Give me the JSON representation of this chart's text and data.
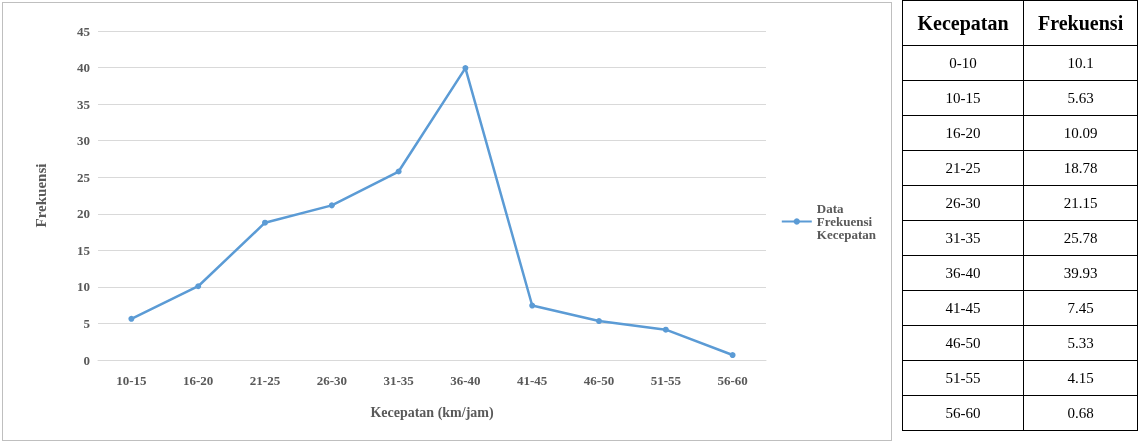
{
  "chart_data": [
    {
      "type": "line",
      "xlabel": "Kecepatan (km/jam)",
      "ylabel": "Frekuensi",
      "categories": [
        "10-15",
        "16-20",
        "21-25",
        "26-30",
        "31-35",
        "36-40",
        "41-45",
        "46-50",
        "51-55",
        "56-60"
      ],
      "series": [
        {
          "name": "Data Frekuensi Kecepatan",
          "color": "#5b9bd5",
          "values": [
            5.63,
            10.09,
            18.78,
            21.15,
            25.78,
            39.93,
            7.45,
            5.33,
            4.15,
            0.68
          ]
        }
      ],
      "ylim": [
        0,
        45
      ],
      "yticks": [
        0,
        5,
        10,
        15,
        20,
        25,
        30,
        35,
        40,
        45
      ],
      "grid": "y",
      "legend": "right",
      "marker": "circle"
    },
    {
      "type": "other",
      "xlabel": "Kecepatan",
      "ylabel": "Frekuensi",
      "categories": [
        "0-10",
        "10-15",
        "16-20",
        "21-25",
        "26-30",
        "31-35",
        "36-40",
        "41-45",
        "46-50",
        "51-55",
        "56-60"
      ],
      "values": [
        10.1,
        5.63,
        10.09,
        18.78,
        21.15,
        25.78,
        39.93,
        7.45,
        5.33,
        4.15,
        0.68
      ],
      "data_labels": true
    }
  ]
}
